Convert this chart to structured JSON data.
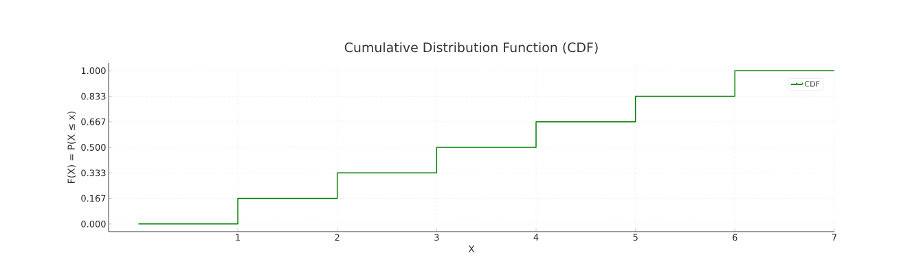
{
  "chart_data": {
    "type": "step",
    "title": "Cumulative Distribution Function (CDF)",
    "xlabel": "X",
    "ylabel": "F(X) = P(X ≤ x)",
    "x": [
      0,
      1,
      2,
      3,
      4,
      5,
      6,
      7
    ],
    "series": [
      {
        "name": "CDF",
        "color": "#008000",
        "values": [
          0,
          0.167,
          0.333,
          0.5,
          0.667,
          0.833,
          1,
          1
        ]
      }
    ],
    "xlim": [
      -0.3,
      7
    ],
    "ylim": [
      -0.05,
      1.05
    ],
    "xticks": [
      1,
      2,
      3,
      4,
      5,
      6,
      7
    ],
    "yticks": [
      {
        "value": 0,
        "label": "0.000"
      },
      {
        "value": 0.167,
        "label": "0.167"
      },
      {
        "value": 0.333,
        "label": "0.333"
      },
      {
        "value": 0.5,
        "label": "0.500"
      },
      {
        "value": 0.667,
        "label": "0.667"
      },
      {
        "value": 0.833,
        "label": "0.833"
      },
      {
        "value": 1,
        "label": "1.000"
      }
    ],
    "grid": true,
    "legend": "top right"
  }
}
